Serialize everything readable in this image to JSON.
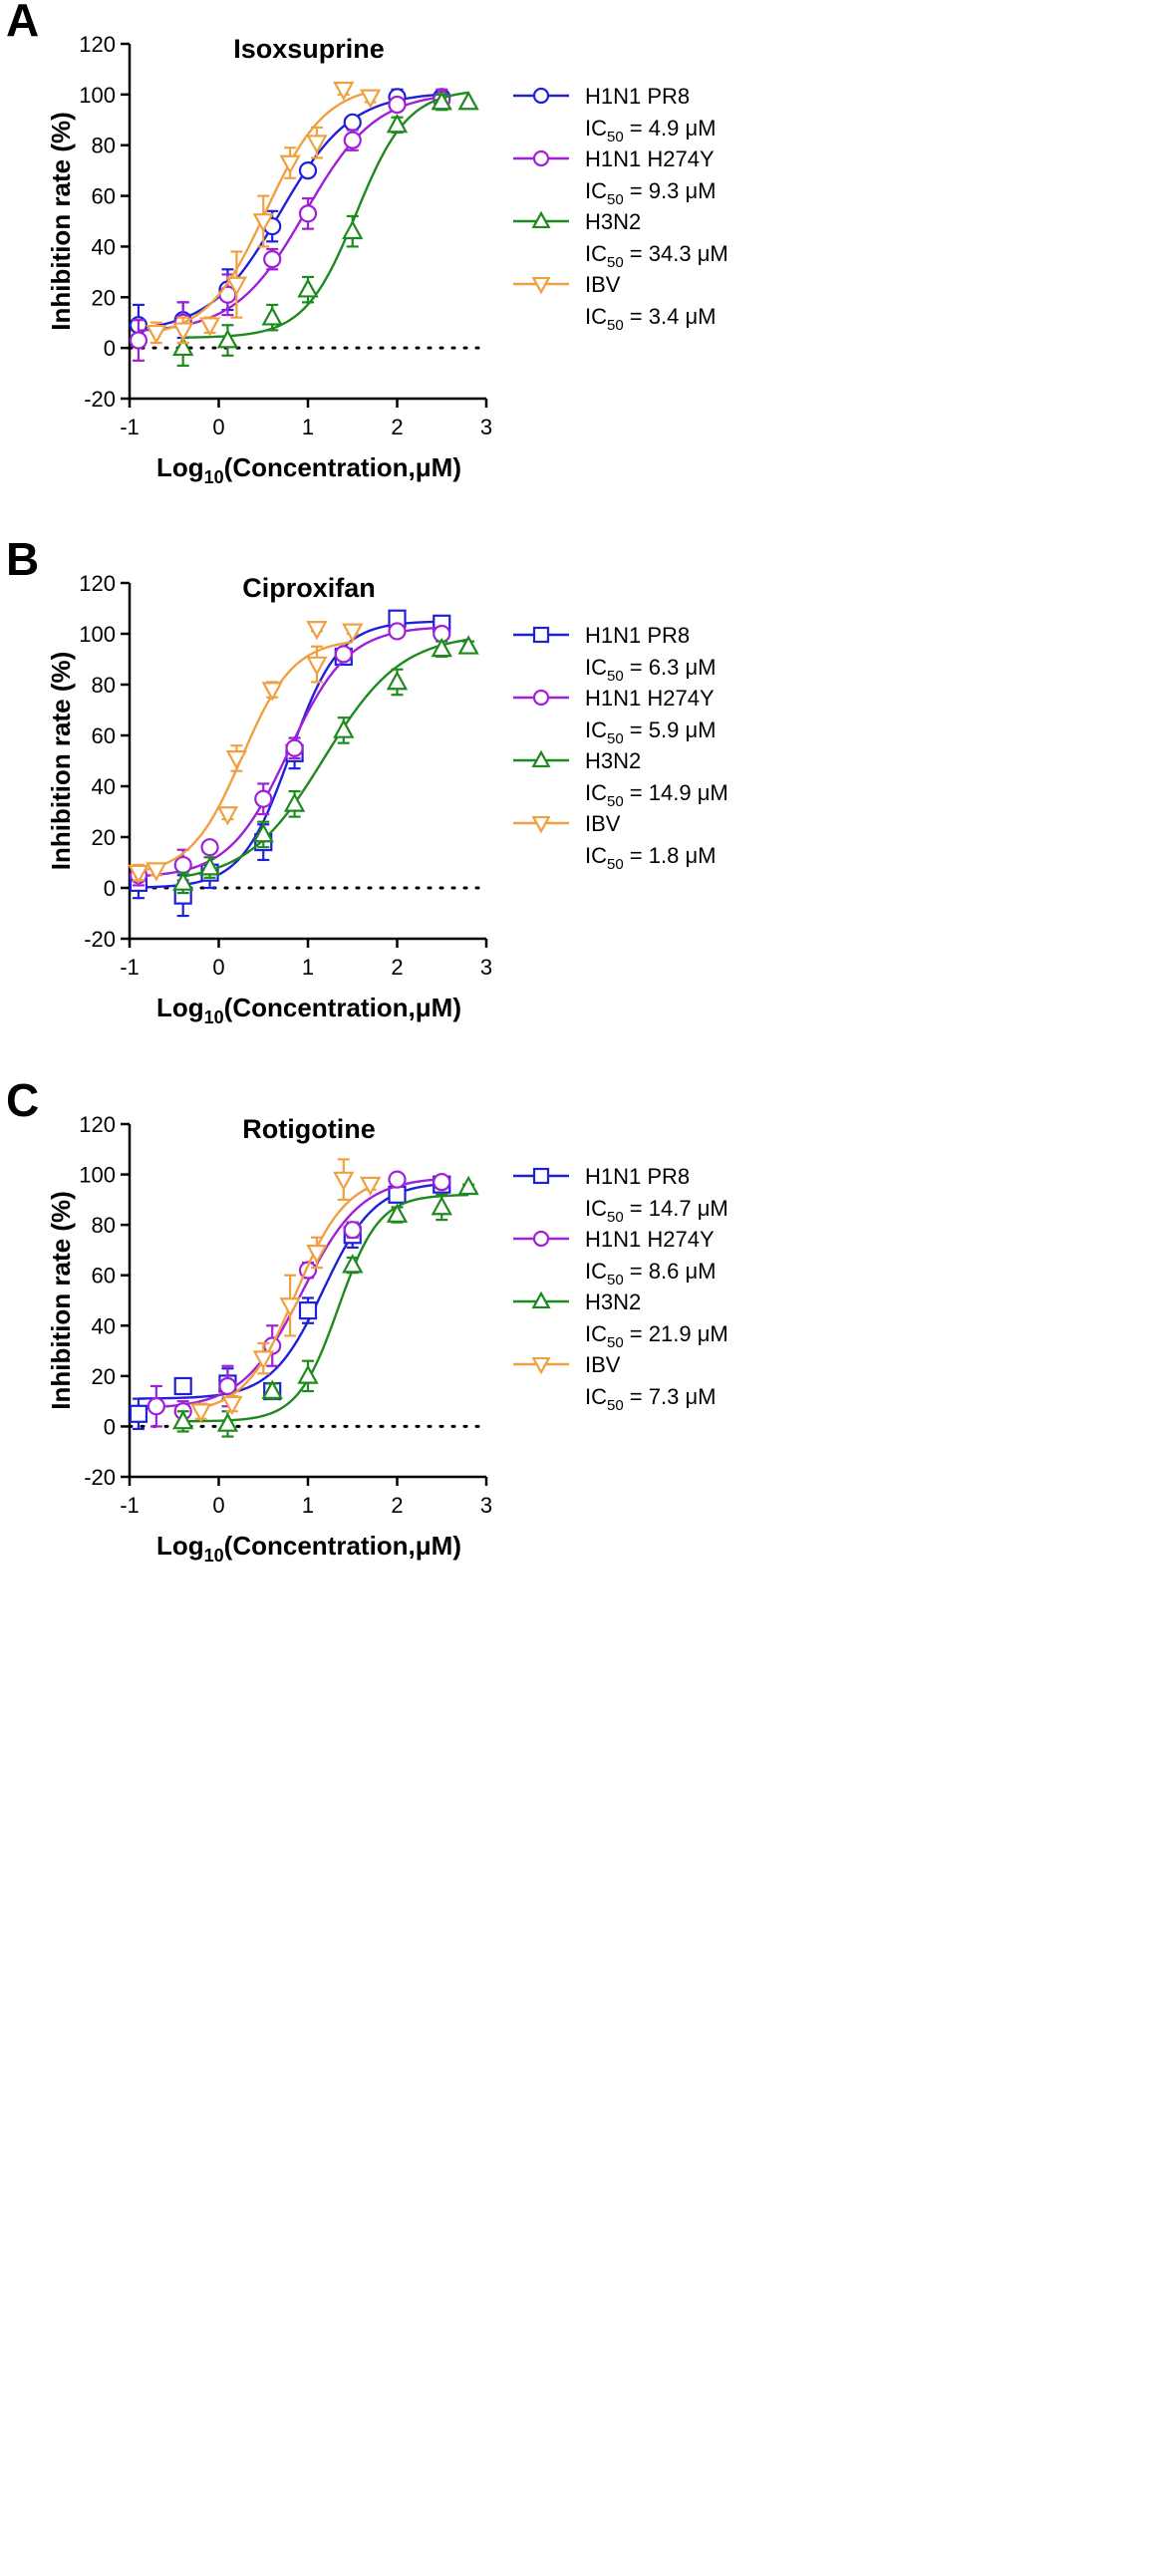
{
  "chart_data": [
    {
      "type": "line",
      "panel_letter": "A",
      "title": "Isoxsuprine",
      "ylabel": "Inhibition rate (%)",
      "xlabel_prefix": "Log",
      "xlabel_subscript": "10",
      "xlabel_suffix": "(Concentration,μM)",
      "xlim": [
        -1,
        3
      ],
      "ylim": [
        -20,
        120
      ],
      "xticks": [
        "-1",
        "0",
        "1",
        "2",
        "3"
      ],
      "yticks": [
        "-20",
        "0",
        "20",
        "40",
        "60",
        "80",
        "100",
        "120"
      ],
      "reference_line": 0,
      "series": [
        {
          "name": "H1N1 PR8",
          "ic50_label": "IC",
          "ic50_subscript": "50",
          "ic50_value": " = 4.9 μM",
          "color": "#2020d8",
          "marker": "circle",
          "fit": {
            "bottom": 6,
            "top": 101,
            "log_ic50": 0.69,
            "hill": 1.1
          },
          "points": [
            {
              "x": -0.9,
              "y": 9,
              "err": 8
            },
            {
              "x": -0.4,
              "y": 11,
              "err": 7
            },
            {
              "x": 0.1,
              "y": 23,
              "err": 8
            },
            {
              "x": 0.6,
              "y": 48,
              "err": 6
            },
            {
              "x": 1.0,
              "y": 70,
              "err": 2
            },
            {
              "x": 1.5,
              "y": 89,
              "err": 1
            },
            {
              "x": 2.0,
              "y": 99,
              "err": 3
            },
            {
              "x": 2.5,
              "y": 99,
              "err": 2
            }
          ]
        },
        {
          "name": "H1N1 H274Y",
          "ic50_label": "IC",
          "ic50_subscript": "50",
          "ic50_value": " = 9.3 μM",
          "color": "#a020d8",
          "marker": "circle",
          "fit": {
            "bottom": 6,
            "top": 101,
            "log_ic50": 0.97,
            "hill": 1.1
          },
          "points": [
            {
              "x": -0.9,
              "y": 3,
              "err": 8
            },
            {
              "x": -0.4,
              "y": 10,
              "err": 8
            },
            {
              "x": 0.1,
              "y": 21,
              "err": 8
            },
            {
              "x": 0.6,
              "y": 35,
              "err": 4
            },
            {
              "x": 1.0,
              "y": 53,
              "err": 6
            },
            {
              "x": 1.5,
              "y": 82,
              "err": 4
            },
            {
              "x": 2.0,
              "y": 96,
              "err": 2
            },
            {
              "x": 2.5,
              "y": 98,
              "err": 4
            }
          ]
        },
        {
          "name": "H3N2",
          "ic50_label": "IC",
          "ic50_subscript": "50",
          "ic50_value": " = 34.3 μM",
          "color": "#1e8a1e",
          "marker": "triangle-up",
          "fit": {
            "bottom": 4,
            "top": 102,
            "log_ic50": 1.54,
            "hill": 1.5
          },
          "points": [
            {
              "x": -0.4,
              "y": 0,
              "err": 7
            },
            {
              "x": 0.1,
              "y": 3,
              "err": 6
            },
            {
              "x": 0.6,
              "y": 12,
              "err": 5
            },
            {
              "x": 1.0,
              "y": 23,
              "err": 5
            },
            {
              "x": 1.5,
              "y": 46,
              "err": 6
            },
            {
              "x": 2.0,
              "y": 88,
              "err": 3
            },
            {
              "x": 2.5,
              "y": 97,
              "err": 3
            },
            {
              "x": 2.8,
              "y": 97,
              "err": 0
            }
          ]
        },
        {
          "name": "IBV",
          "ic50_label": "IC",
          "ic50_subscript": "50",
          "ic50_value": " = 3.4 μM",
          "color": "#f0a040",
          "marker": "triangle-down",
          "fit": {
            "bottom": 4,
            "top": 104,
            "log_ic50": 0.53,
            "hill": 1.3
          },
          "points": [
            {
              "x": -0.7,
              "y": 6,
              "err": 4
            },
            {
              "x": -0.4,
              "y": 7,
              "err": 5
            },
            {
              "x": -0.1,
              "y": 9,
              "err": 3
            },
            {
              "x": 0.2,
              "y": 25,
              "err": 13
            },
            {
              "x": 0.5,
              "y": 50,
              "err": 10
            },
            {
              "x": 0.8,
              "y": 73,
              "err": 6
            },
            {
              "x": 1.1,
              "y": 81,
              "err": 6
            },
            {
              "x": 1.4,
              "y": 102,
              "err": 2
            },
            {
              "x": 1.7,
              "y": 99,
              "err": 2
            }
          ]
        }
      ]
    },
    {
      "type": "line",
      "panel_letter": "B",
      "title": "Ciproxifan",
      "ylabel": "Inhibition rate (%)",
      "xlabel_prefix": "Log",
      "xlabel_subscript": "10",
      "xlabel_suffix": "(Concentration,μM)",
      "xlim": [
        -1,
        3
      ],
      "ylim": [
        -20,
        120
      ],
      "xticks": [
        "-1",
        "0",
        "1",
        "2",
        "3"
      ],
      "yticks": [
        "-20",
        "0",
        "20",
        "40",
        "60",
        "80",
        "100",
        "120"
      ],
      "reference_line": 0,
      "series": [
        {
          "name": "H1N1 PR8",
          "ic50_label": "IC",
          "ic50_subscript": "50",
          "ic50_value": " = 6.3 μM",
          "color": "#2020d8",
          "marker": "square",
          "fit": {
            "bottom": 0,
            "top": 105,
            "log_ic50": 0.8,
            "hill": 1.6
          },
          "points": [
            {
              "x": -0.9,
              "y": 2,
              "err": 6
            },
            {
              "x": -0.4,
              "y": -3,
              "err": 8
            },
            {
              "x": -0.1,
              "y": 6,
              "err": 6
            },
            {
              "x": 0.5,
              "y": 18,
              "err": 7
            },
            {
              "x": 0.85,
              "y": 53,
              "err": 6
            },
            {
              "x": 1.4,
              "y": 91,
              "err": 3
            },
            {
              "x": 2.0,
              "y": 106,
              "err": 2
            },
            {
              "x": 2.5,
              "y": 104,
              "err": 2
            }
          ]
        },
        {
          "name": "H1N1 H274Y",
          "ic50_label": "IC",
          "ic50_subscript": "50",
          "ic50_value": " = 5.9 μM",
          "color": "#a020d8",
          "marker": "circle",
          "fit": {
            "bottom": 4,
            "top": 103,
            "log_ic50": 0.78,
            "hill": 1.3
          },
          "points": [
            {
              "x": -0.9,
              "y": 5,
              "err": 4
            },
            {
              "x": -0.4,
              "y": 9,
              "err": 6
            },
            {
              "x": -0.1,
              "y": 16,
              "err": 2
            },
            {
              "x": 0.5,
              "y": 35,
              "err": 6
            },
            {
              "x": 0.85,
              "y": 55,
              "err": 4
            },
            {
              "x": 1.4,
              "y": 92,
              "err": 2
            },
            {
              "x": 2.0,
              "y": 101,
              "err": 2
            },
            {
              "x": 2.5,
              "y": 100,
              "err": 2
            }
          ]
        },
        {
          "name": "H3N2",
          "ic50_label": "IC",
          "ic50_subscript": "50",
          "ic50_value": " = 14.9 μM",
          "color": "#1e8a1e",
          "marker": "triangle-up",
          "fit": {
            "bottom": 2,
            "top": 100,
            "log_ic50": 1.18,
            "hill": 1.0
          },
          "points": [
            {
              "x": -0.4,
              "y": 2,
              "err": 4
            },
            {
              "x": -0.1,
              "y": 8,
              "err": 4
            },
            {
              "x": 0.5,
              "y": 21,
              "err": 5
            },
            {
              "x": 0.85,
              "y": 33,
              "err": 5
            },
            {
              "x": 1.4,
              "y": 62,
              "err": 5
            },
            {
              "x": 2.0,
              "y": 81,
              "err": 5
            },
            {
              "x": 2.5,
              "y": 94,
              "err": 3
            },
            {
              "x": 2.8,
              "y": 95,
              "err": 2
            }
          ]
        },
        {
          "name": "IBV",
          "ic50_label": "IC",
          "ic50_subscript": "50",
          "ic50_value": " = 1.8 μM",
          "color": "#f0a040",
          "marker": "triangle-down",
          "fit": {
            "bottom": 5,
            "top": 98,
            "log_ic50": 0.26,
            "hill": 1.5
          },
          "points": [
            {
              "x": -0.9,
              "y": 6,
              "err": 3
            },
            {
              "x": -0.7,
              "y": 7,
              "err": 2
            },
            {
              "x": 0.1,
              "y": 29,
              "err": 2
            },
            {
              "x": 0.2,
              "y": 51,
              "err": 5
            },
            {
              "x": 0.6,
              "y": 78,
              "err": 3
            },
            {
              "x": 1.1,
              "y": 88,
              "err": 7
            },
            {
              "x": 1.1,
              "y": 102,
              "err": 1
            },
            {
              "x": 1.5,
              "y": 101,
              "err": 1
            }
          ]
        }
      ]
    },
    {
      "type": "line",
      "panel_letter": "C",
      "title": "Rotigotine",
      "ylabel": "Inhibition rate (%)",
      "xlabel_prefix": "Log",
      "xlabel_subscript": "10",
      "xlabel_suffix": "(Concentration,μM)",
      "xlim": [
        -1,
        3
      ],
      "ylim": [
        -20,
        120
      ],
      "xticks": [
        "-1",
        "0",
        "1",
        "2",
        "3"
      ],
      "yticks": [
        "-20",
        "0",
        "20",
        "40",
        "60",
        "80",
        "100",
        "120"
      ],
      "reference_line": 0,
      "series": [
        {
          "name": "H1N1 PR8",
          "ic50_label": "IC",
          "ic50_subscript": "50",
          "ic50_value": " = 14.7 μM",
          "color": "#2020d8",
          "marker": "square",
          "fit": {
            "bottom": 11,
            "top": 97,
            "log_ic50": 1.17,
            "hill": 1.5
          },
          "points": [
            {
              "x": -0.9,
              "y": 5,
              "err": 6
            },
            {
              "x": -0.4,
              "y": 16,
              "err": 0
            },
            {
              "x": 0.1,
              "y": 17,
              "err": 6
            },
            {
              "x": 0.6,
              "y": 14,
              "err": 3
            },
            {
              "x": 1.0,
              "y": 46,
              "err": 5
            },
            {
              "x": 1.5,
              "y": 76,
              "err": 5
            },
            {
              "x": 2.0,
              "y": 92,
              "err": 3
            },
            {
              "x": 2.5,
              "y": 96,
              "err": 2
            }
          ]
        },
        {
          "name": "H1N1 H274Y",
          "ic50_label": "IC",
          "ic50_subscript": "50",
          "ic50_value": " = 8.6 μM",
          "color": "#a020d8",
          "marker": "circle",
          "fit": {
            "bottom": 7,
            "top": 99,
            "log_ic50": 0.93,
            "hill": 1.3
          },
          "points": [
            {
              "x": -0.7,
              "y": 8,
              "err": 8
            },
            {
              "x": -0.4,
              "y": 6,
              "err": 4
            },
            {
              "x": 0.1,
              "y": 16,
              "err": 8
            },
            {
              "x": 0.6,
              "y": 32,
              "err": 8
            },
            {
              "x": 1.0,
              "y": 62,
              "err": 3
            },
            {
              "x": 1.5,
              "y": 78,
              "err": 3
            },
            {
              "x": 2.0,
              "y": 98,
              "err": 2
            },
            {
              "x": 2.5,
              "y": 97,
              "err": 2
            }
          ]
        },
        {
          "name": "H3N2",
          "ic50_label": "IC",
          "ic50_subscript": "50",
          "ic50_value": " = 21.9 μM",
          "color": "#1e8a1e",
          "marker": "triangle-up",
          "fit": {
            "bottom": 2,
            "top": 92,
            "log_ic50": 1.34,
            "hill": 1.9
          },
          "points": [
            {
              "x": -0.4,
              "y": 2,
              "err": 4
            },
            {
              "x": 0.1,
              "y": 1,
              "err": 5
            },
            {
              "x": 0.6,
              "y": 14,
              "err": 3
            },
            {
              "x": 1.0,
              "y": 20,
              "err": 6
            },
            {
              "x": 1.5,
              "y": 64,
              "err": 3
            },
            {
              "x": 2.0,
              "y": 84,
              "err": 3
            },
            {
              "x": 2.5,
              "y": 87,
              "err": 5
            },
            {
              "x": 2.8,
              "y": 95,
              "err": 1
            }
          ]
        },
        {
          "name": "IBV",
          "ic50_label": "IC",
          "ic50_subscript": "50",
          "ic50_value": " = 7.3 μM",
          "color": "#f0a040",
          "marker": "triangle-down",
          "fit": {
            "bottom": 5,
            "top": 100,
            "log_ic50": 0.86,
            "hill": 1.5
          },
          "points": [
            {
              "x": -0.2,
              "y": 6,
              "err": 3
            },
            {
              "x": 0.15,
              "y": 9,
              "err": 3
            },
            {
              "x": 0.5,
              "y": 27,
              "err": 6
            },
            {
              "x": 0.8,
              "y": 48,
              "err": 12
            },
            {
              "x": 1.1,
              "y": 69,
              "err": 6
            },
            {
              "x": 1.4,
              "y": 98,
              "err": 8
            },
            {
              "x": 1.7,
              "y": 96,
              "err": 2
            }
          ]
        }
      ]
    }
  ]
}
